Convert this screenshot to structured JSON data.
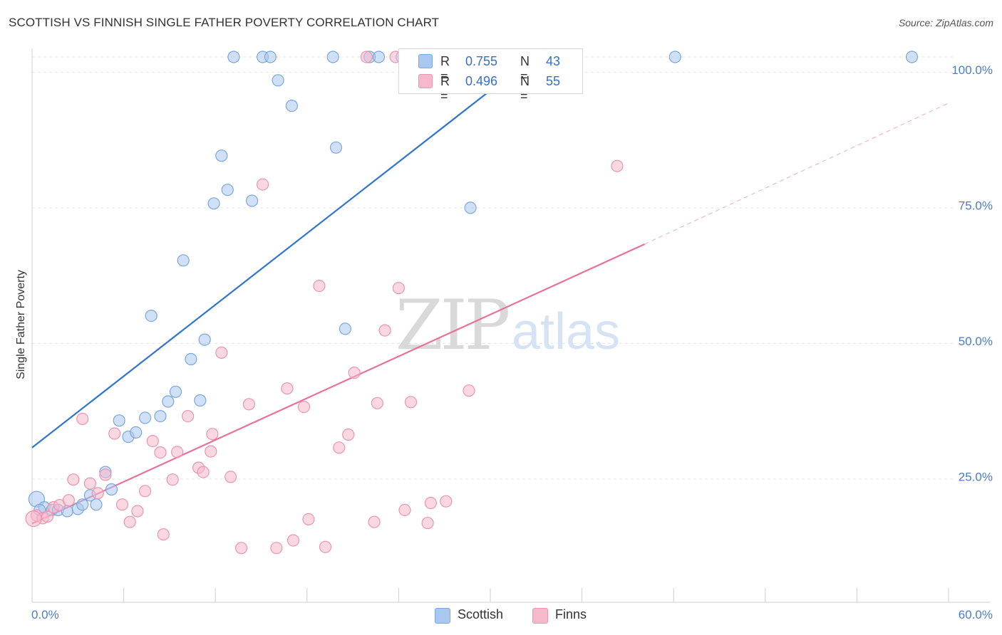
{
  "header": {
    "title": "SCOTTISH VS FINNISH SINGLE FATHER POVERTY CORRELATION CHART",
    "source": "Source: ZipAtlas.com"
  },
  "watermark": {
    "zip": "ZIP",
    "atlas": "atlas"
  },
  "legend": {
    "rows": [
      {
        "r_label": "R =",
        "r_value": "0.755",
        "n_label": "N =",
        "n_value": "43",
        "color": "#a9c8f0"
      },
      {
        "r_label": "R =",
        "r_value": "0.496",
        "n_label": "N =",
        "n_value": "55",
        "color": "#f6b8cb"
      }
    ],
    "bottom": [
      {
        "label": "Scottish",
        "color": "#a9c8f0"
      },
      {
        "label": "Finns",
        "color": "#f6b8cb"
      }
    ]
  },
  "chart_data": {
    "type": "scatter",
    "title": "SCOTTISH VS FINNISH SINGLE FATHER POVERTY CORRELATION CHART",
    "xlabel": "",
    "ylabel": "Single Father Poverty",
    "xlim": [
      0,
      60
    ],
    "ylim": [
      0,
      105
    ],
    "x_tick_labels": [
      "0.0%",
      "60.0%"
    ],
    "y_ticks": [
      25,
      50,
      75,
      100
    ],
    "y_tick_labels": [
      "25.0%",
      "50.0%",
      "75.0%",
      "100.0%"
    ],
    "grid": true,
    "legend_position": "top-center",
    "series": [
      {
        "name": "Scottish",
        "color": "#a9c8f0",
        "stroke": "#7aa7e0",
        "line_color": "#2f74d0",
        "trend": {
          "x": [
            0,
            33.5
          ],
          "y": [
            28.5,
            102
          ]
        },
        "points": [
          [
            0.3,
            19.0
          ],
          [
            0.8,
            17.5
          ],
          [
            1.3,
            17.0
          ],
          [
            1.7,
            17.0
          ],
          [
            2.3,
            16.8
          ],
          [
            3.0,
            17.2
          ],
          [
            3.3,
            18.0
          ],
          [
            3.8,
            19.7
          ],
          [
            4.2,
            18.0
          ],
          [
            4.8,
            24.0
          ],
          [
            5.2,
            20.8
          ],
          [
            5.7,
            33.5
          ],
          [
            6.3,
            30.5
          ],
          [
            6.8,
            31.3
          ],
          [
            7.4,
            34.0
          ],
          [
            7.8,
            52.8
          ],
          [
            8.4,
            34.3
          ],
          [
            8.9,
            37.0
          ],
          [
            9.4,
            38.8
          ],
          [
            9.9,
            63.0
          ],
          [
            10.4,
            44.8
          ],
          [
            11.0,
            37.2
          ],
          [
            11.3,
            48.4
          ],
          [
            11.9,
            73.5
          ],
          [
            12.4,
            82.3
          ],
          [
            12.8,
            76.0
          ],
          [
            13.2,
            100.5
          ],
          [
            14.4,
            74.0
          ],
          [
            15.1,
            100.5
          ],
          [
            15.6,
            100.5
          ],
          [
            16.1,
            96.2
          ],
          [
            17.0,
            91.5
          ],
          [
            19.7,
            100.5
          ],
          [
            19.9,
            83.8
          ],
          [
            20.5,
            50.4
          ],
          [
            22.1,
            100.5
          ],
          [
            22.7,
            100.5
          ],
          [
            24.2,
            100.5
          ],
          [
            28.7,
            72.7
          ],
          [
            31.1,
            100.5
          ],
          [
            42.1,
            100.5
          ],
          [
            57.6,
            100.5
          ],
          [
            0.5,
            17.0
          ]
        ]
      },
      {
        "name": "Finns",
        "color": "#f6b8cb",
        "stroke": "#ec94b0",
        "line_color": "#e8709a",
        "trend": {
          "x": [
            0,
            40.1
          ],
          "y": [
            14.5,
            66.0
          ]
        },
        "trend_extension": {
          "x": [
            40.1,
            60
          ],
          "y": [
            66.0,
            92.0
          ]
        },
        "points": [
          [
            0.3,
            16.0
          ],
          [
            0.7,
            15.5
          ],
          [
            1.0,
            15.8
          ],
          [
            1.4,
            17.5
          ],
          [
            1.8,
            17.9
          ],
          [
            2.4,
            18.8
          ],
          [
            2.7,
            22.6
          ],
          [
            3.3,
            33.8
          ],
          [
            3.8,
            21.9
          ],
          [
            4.3,
            20.1
          ],
          [
            4.8,
            23.5
          ],
          [
            5.4,
            31.1
          ],
          [
            5.9,
            18.0
          ],
          [
            6.4,
            14.8
          ],
          [
            6.9,
            16.8
          ],
          [
            7.4,
            20.5
          ],
          [
            7.9,
            29.7
          ],
          [
            8.4,
            27.6
          ],
          [
            8.6,
            12.5
          ],
          [
            9.2,
            22.6
          ],
          [
            9.5,
            27.7
          ],
          [
            10.2,
            34.3
          ],
          [
            10.9,
            24.8
          ],
          [
            11.2,
            24.0
          ],
          [
            11.7,
            27.8
          ],
          [
            11.8,
            31.0
          ],
          [
            12.4,
            46.0
          ],
          [
            13.0,
            23.1
          ],
          [
            13.7,
            10.0
          ],
          [
            14.2,
            36.5
          ],
          [
            15.1,
            77.0
          ],
          [
            16.0,
            10.0
          ],
          [
            16.7,
            39.4
          ],
          [
            17.1,
            11.4
          ],
          [
            17.8,
            36.0
          ],
          [
            18.1,
            15.3
          ],
          [
            18.8,
            58.3
          ],
          [
            19.2,
            10.2
          ],
          [
            20.1,
            28.5
          ],
          [
            20.7,
            30.9
          ],
          [
            21.1,
            42.3
          ],
          [
            21.9,
            100.5
          ],
          [
            22.4,
            14.8
          ],
          [
            22.6,
            36.7
          ],
          [
            23.1,
            50.1
          ],
          [
            23.8,
            100.5
          ],
          [
            24.0,
            57.9
          ],
          [
            24.4,
            17.0
          ],
          [
            24.8,
            36.9
          ],
          [
            25.9,
            14.6
          ],
          [
            26.1,
            18.3
          ],
          [
            27.1,
            18.6
          ],
          [
            28.6,
            39.0
          ],
          [
            38.3,
            80.4
          ],
          [
            0.1,
            15.4
          ]
        ]
      }
    ]
  }
}
